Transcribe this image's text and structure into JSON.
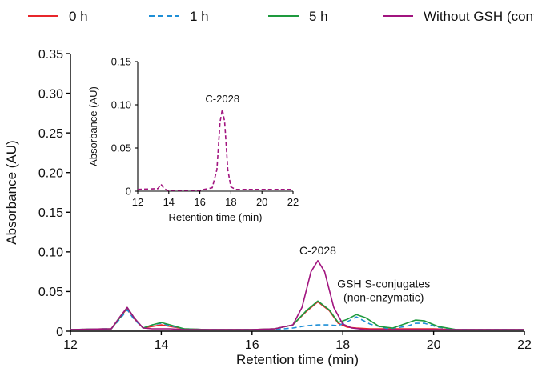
{
  "chart_data": [
    {
      "type": "line",
      "title": "",
      "xlabel": "Retention time (min)",
      "ylabel": "Absorbance (AU)",
      "xlim": [
        12,
        22
      ],
      "ylim": [
        0,
        0.35
      ],
      "xticks": [
        12,
        14,
        16,
        18,
        20,
        22
      ],
      "yticks": [
        0,
        0.05,
        0.1,
        0.15,
        0.2,
        0.25,
        0.3,
        0.35
      ],
      "ytick_labels": [
        "0",
        "0.05",
        "0.10",
        "0.15",
        "0.20",
        "0.25",
        "0.30",
        "0.35"
      ],
      "grid": false,
      "legend_position": "top",
      "series": [
        {
          "name": "0 h",
          "color": "#e8262b",
          "dash": "solid",
          "x": [
            12.0,
            12.9,
            13.1,
            13.25,
            13.4,
            13.6,
            13.8,
            14.0,
            14.2,
            14.5,
            15.0,
            16.0,
            16.5,
            16.9,
            17.2,
            17.45,
            17.7,
            17.9,
            18.1,
            18.3,
            18.6,
            19.0,
            19.4,
            19.7,
            20.0,
            20.5,
            21.0,
            22.0
          ],
          "y": [
            0.002,
            0.003,
            0.018,
            0.029,
            0.016,
            0.004,
            0.006,
            0.008,
            0.006,
            0.003,
            0.002,
            0.002,
            0.003,
            0.008,
            0.025,
            0.037,
            0.026,
            0.01,
            0.005,
            0.004,
            0.003,
            0.003,
            0.003,
            0.003,
            0.003,
            0.002,
            0.002,
            0.002
          ]
        },
        {
          "name": "1 h",
          "color": "#1f8fd6",
          "dash": "dashed",
          "x": [
            12.0,
            12.9,
            13.1,
            13.25,
            13.4,
            13.6,
            13.8,
            14.0,
            14.2,
            14.5,
            15.0,
            16.0,
            16.5,
            16.9,
            17.2,
            17.45,
            17.7,
            17.9,
            18.1,
            18.3,
            18.6,
            19.0,
            19.4,
            19.6,
            19.8,
            20.1,
            20.5,
            21.0,
            22.0
          ],
          "y": [
            0.002,
            0.003,
            0.016,
            0.027,
            0.015,
            0.004,
            0.008,
            0.01,
            0.007,
            0.003,
            0.002,
            0.002,
            0.002,
            0.004,
            0.007,
            0.008,
            0.008,
            0.007,
            0.012,
            0.018,
            0.009,
            0.003,
            0.006,
            0.01,
            0.01,
            0.005,
            0.002,
            0.002,
            0.002
          ]
        },
        {
          "name": "5 h",
          "color": "#1e9a3e",
          "dash": "solid",
          "x": [
            12.0,
            12.9,
            13.1,
            13.25,
            13.4,
            13.6,
            13.8,
            14.0,
            14.2,
            14.5,
            15.0,
            16.0,
            16.5,
            16.9,
            17.2,
            17.45,
            17.7,
            17.9,
            18.1,
            18.3,
            18.5,
            18.8,
            19.1,
            19.4,
            19.6,
            19.8,
            20.1,
            20.5,
            21.0,
            22.0
          ],
          "y": [
            0.002,
            0.003,
            0.018,
            0.03,
            0.017,
            0.004,
            0.008,
            0.011,
            0.008,
            0.003,
            0.002,
            0.002,
            0.003,
            0.008,
            0.026,
            0.038,
            0.027,
            0.011,
            0.015,
            0.021,
            0.017,
            0.006,
            0.004,
            0.01,
            0.014,
            0.013,
            0.006,
            0.002,
            0.002,
            0.002
          ]
        },
        {
          "name": "Without GSH (control)",
          "color": "#a1147f",
          "dash": "solid",
          "x": [
            12.0,
            12.9,
            13.1,
            13.25,
            13.4,
            13.6,
            13.8,
            14.0,
            14.2,
            14.5,
            15.0,
            16.0,
            16.5,
            16.9,
            17.1,
            17.3,
            17.45,
            17.6,
            17.8,
            18.0,
            18.2,
            18.5,
            19.0,
            20.0,
            21.0,
            22.0
          ],
          "y": [
            0.002,
            0.003,
            0.019,
            0.03,
            0.017,
            0.004,
            0.003,
            0.003,
            0.003,
            0.002,
            0.002,
            0.002,
            0.003,
            0.008,
            0.03,
            0.075,
            0.089,
            0.075,
            0.03,
            0.009,
            0.004,
            0.002,
            0.002,
            0.002,
            0.002,
            0.002
          ]
        }
      ],
      "annotations": [
        {
          "text": "C-2028",
          "x": 17.45,
          "y": 0.097
        },
        {
          "text": "GSH S-conjugates",
          "x": 18.9,
          "y": 0.055
        },
        {
          "text": "(non-enzymatic)",
          "x": 18.9,
          "y": 0.038
        }
      ]
    },
    {
      "type": "line",
      "title": "",
      "xlabel": "Retention time (min)",
      "ylabel": "Absorbance (AU)",
      "xlim": [
        12,
        22
      ],
      "ylim": [
        0,
        0.15
      ],
      "xticks": [
        12,
        14,
        16,
        18,
        20,
        22
      ],
      "yticks": [
        0,
        0.05,
        0.1,
        0.15
      ],
      "ytick_labels": [
        "0",
        "0.05",
        "0.10",
        "0.15"
      ],
      "grid": false,
      "series": [
        {
          "color": "#a1147f",
          "dash": "dashed",
          "x": [
            12.0,
            13.3,
            13.5,
            13.7,
            13.9,
            14.5,
            16.0,
            16.8,
            17.1,
            17.3,
            17.45,
            17.6,
            17.8,
            18.0,
            18.3,
            19.0,
            20.0,
            22.0
          ],
          "y": [
            0.002,
            0.003,
            0.008,
            0.003,
            0.001,
            0.001,
            0.001,
            0.004,
            0.025,
            0.08,
            0.095,
            0.08,
            0.025,
            0.005,
            0.002,
            0.002,
            0.002,
            0.002
          ]
        }
      ],
      "annotations": [
        {
          "text": "C-2028",
          "x": 17.45,
          "y": 0.103
        }
      ]
    }
  ]
}
